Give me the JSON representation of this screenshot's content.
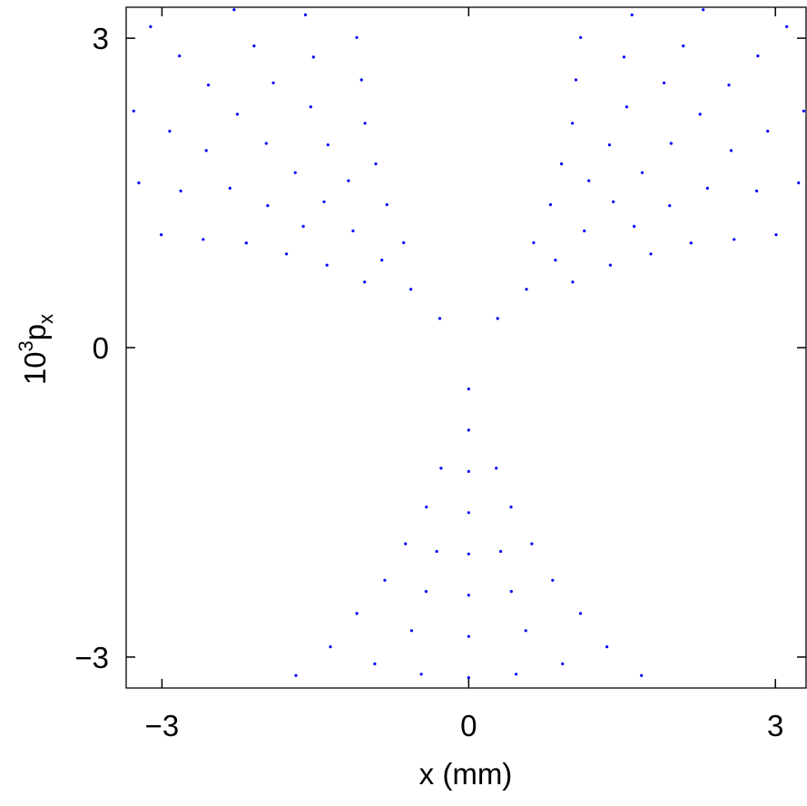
{
  "chart_data": {
    "type": "scatter",
    "title": "",
    "xlabel": "x (mm)",
    "ylabel": {
      "prefix": "10",
      "sup": "3",
      "main": "p",
      "sub": "x"
    },
    "xlim": [
      -3.35,
      3.3
    ],
    "ylim": [
      -3.3,
      3.3
    ],
    "xticks": [
      -3,
      0,
      3
    ],
    "xtick_labels": [
      "−3",
      "0",
      "3"
    ],
    "yticks": [
      -3,
      0,
      3
    ],
    "ytick_labels": [
      "−3",
      "0",
      "3"
    ],
    "grid": false,
    "legend": "none",
    "marker_color": "#0000ff",
    "series": [
      {
        "description": "phase-space points forming three arms at 120 degrees (up-left, up-right, down)",
        "arms_deg": [
          90,
          210,
          330
        ],
        "arm_half_width_deg": [
          9,
          10,
          13,
          15,
          18,
          20,
          23,
          25,
          28,
          30,
          32,
          34,
          36,
          38,
          40,
          42,
          44
        ],
        "ring_radius_step": 0.2,
        "ring_count": 17,
        "points_per_ring": [
          1,
          1,
          3,
          3,
          5,
          5,
          5,
          7,
          7,
          7,
          9,
          9,
          9,
          9,
          11,
          11,
          11
        ]
      }
    ]
  }
}
